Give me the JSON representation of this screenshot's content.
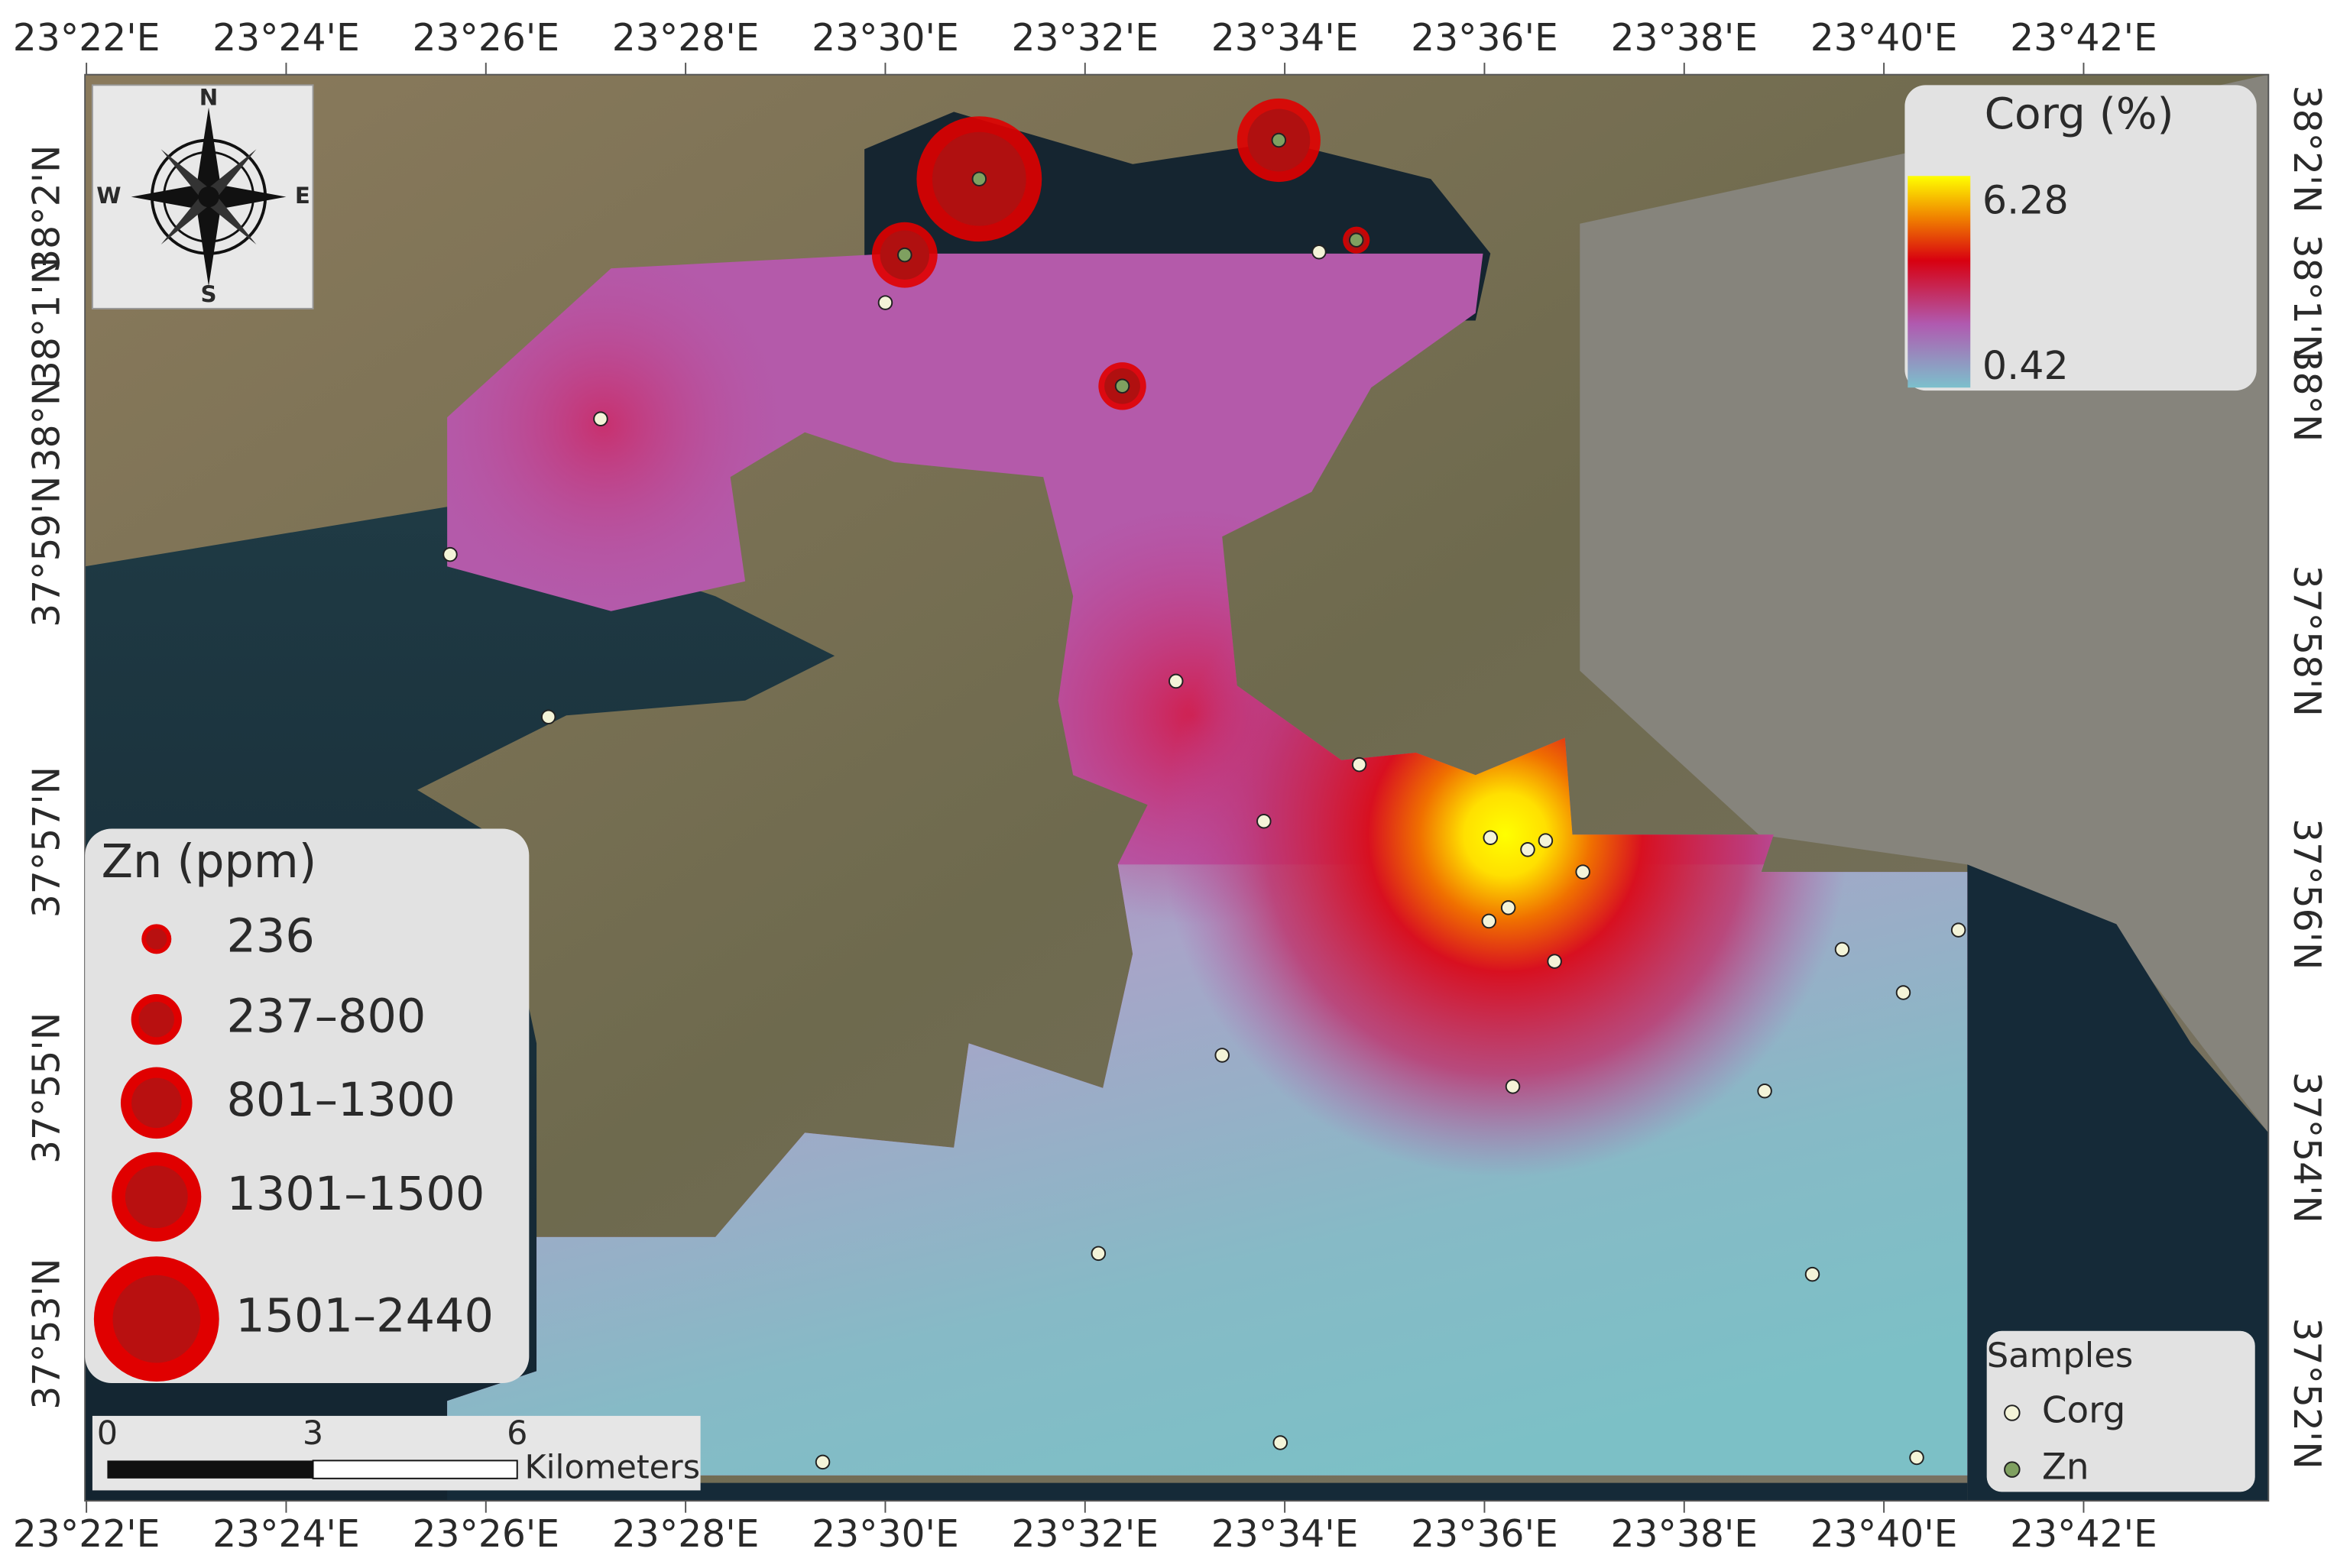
{
  "map": {
    "top_labels": [
      "23°22'E",
      "23°24'E",
      "23°26'E",
      "23°28'E",
      "23°30'E",
      "23°32'E",
      "23°34'E",
      "23°36'E",
      "23°38'E",
      "23°40'E",
      "23°42'E"
    ],
    "bottom_labels": [
      "23°22'E",
      "23°24'E",
      "23°26'E",
      "23°28'E",
      "23°30'E",
      "23°32'E",
      "23°34'E",
      "23°36'E",
      "23°38'E",
      "23°40'E",
      "23°42'E"
    ],
    "left_labels": [
      "38°2'N",
      "38°1'N",
      "38°N",
      "37°59'N",
      "37°57'N",
      "37°55'N",
      "37°53'N"
    ],
    "right_labels": [
      "38°2'N",
      "38°1'N",
      "38°N",
      "37°58'N",
      "37°56'N",
      "37°54'N",
      "37°52'N"
    ],
    "compass": {
      "n": "N",
      "s": "S",
      "e": "E",
      "w": "W"
    },
    "corg_legend": {
      "title": "Corg (%)",
      "max": 6.28,
      "min": 0.42
    },
    "zn_legend": {
      "title": "Zn (ppm)",
      "classes": [
        236,
        "237–800",
        "801–1300",
        "1301–1500",
        "1501–2440"
      ]
    },
    "samples_legend": {
      "title": "Samples",
      "items": [
        "Corg",
        "Zn"
      ]
    },
    "scale_bar": {
      "labels": [
        0,
        3,
        6
      ],
      "unit": "Kilometers"
    }
  }
}
